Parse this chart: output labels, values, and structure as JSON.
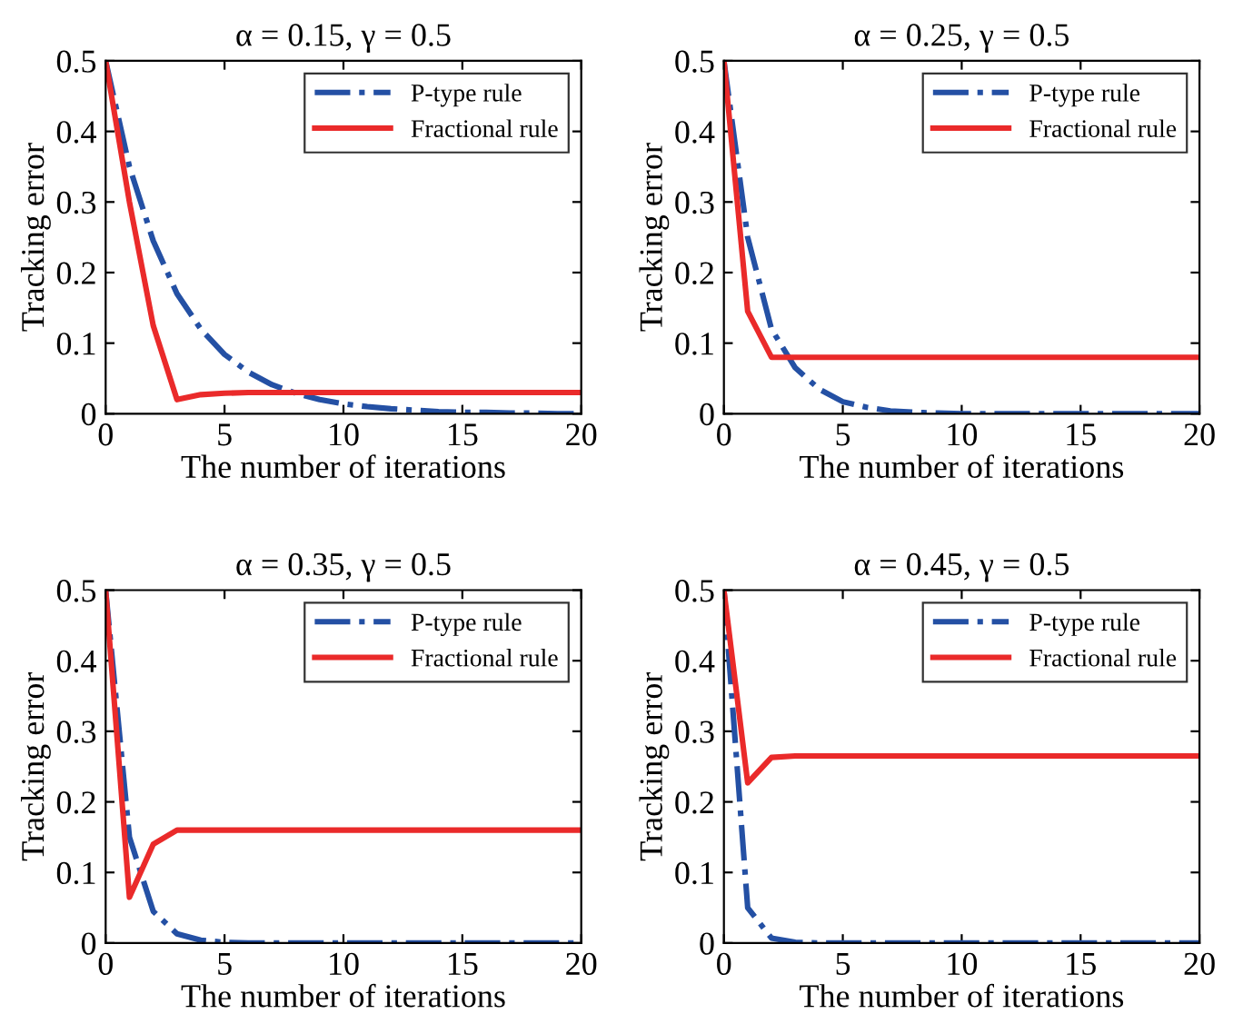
{
  "chart_data": [
    {
      "type": "line",
      "title": "α = 0.15, γ = 0.5",
      "xlabel": "The number of iterations",
      "ylabel": "Tracking error",
      "x": [
        0,
        1,
        2,
        3,
        4,
        5,
        6,
        7,
        8,
        9,
        10,
        11,
        12,
        13,
        14,
        15,
        16,
        17,
        18,
        19,
        20
      ],
      "xlim": [
        0,
        20
      ],
      "ylim": [
        0,
        0.5
      ],
      "xticks": [
        0,
        5,
        10,
        15,
        20
      ],
      "yticks": [
        0,
        0.1,
        0.2,
        0.3,
        0.4,
        0.5
      ],
      "legend": "top right",
      "grid": false,
      "series": [
        {
          "name": "P-type rule",
          "color": "#2450a4",
          "line_style": "dashed",
          "values": [
            0.5,
            0.35,
            0.245,
            0.17,
            0.12,
            0.084,
            0.059,
            0.041,
            0.029,
            0.02,
            0.014,
            0.01,
            0.007,
            0.005,
            0.003,
            0.002,
            0.002,
            0.001,
            0.001,
            0,
            0
          ]
        },
        {
          "name": "Fractional rule",
          "color": "#ea2a2a",
          "line_style": "solid",
          "values": [
            0.5,
            0.3,
            0.125,
            0.02,
            0.027,
            0.029,
            0.03,
            0.03,
            0.03,
            0.03,
            0.03,
            0.03,
            0.03,
            0.03,
            0.03,
            0.03,
            0.03,
            0.03,
            0.03,
            0.03,
            0.03
          ]
        }
      ]
    },
    {
      "type": "line",
      "title": "α = 0.25, γ = 0.5",
      "xlabel": "The number of iterations",
      "ylabel": "Tracking error",
      "x": [
        0,
        1,
        2,
        3,
        4,
        5,
        6,
        7,
        8,
        9,
        10,
        11,
        12,
        13,
        14,
        15,
        16,
        17,
        18,
        19,
        20
      ],
      "xlim": [
        0,
        20
      ],
      "ylim": [
        0,
        0.5
      ],
      "xticks": [
        0,
        5,
        10,
        15,
        20
      ],
      "yticks": [
        0,
        0.1,
        0.2,
        0.3,
        0.4,
        0.5
      ],
      "legend": "top right",
      "grid": false,
      "series": [
        {
          "name": "P-type rule",
          "color": "#2450a4",
          "line_style": "dashed",
          "values": [
            0.5,
            0.25,
            0.12,
            0.065,
            0.035,
            0.017,
            0.009,
            0.004,
            0.002,
            0.001,
            0,
            0,
            0,
            0,
            0,
            0,
            0,
            0,
            0,
            0,
            0
          ]
        },
        {
          "name": "Fractional rule",
          "color": "#ea2a2a",
          "line_style": "solid",
          "values": [
            0.5,
            0.145,
            0.08,
            0.08,
            0.08,
            0.08,
            0.08,
            0.08,
            0.08,
            0.08,
            0.08,
            0.08,
            0.08,
            0.08,
            0.08,
            0.08,
            0.08,
            0.08,
            0.08,
            0.08,
            0.08
          ]
        }
      ]
    },
    {
      "type": "line",
      "title": "α = 0.35, γ = 0.5",
      "xlabel": "The number of iterations",
      "ylabel": "Tracking error",
      "x": [
        0,
        1,
        2,
        3,
        4,
        5,
        6,
        7,
        8,
        9,
        10,
        11,
        12,
        13,
        14,
        15,
        16,
        17,
        18,
        19,
        20
      ],
      "xlim": [
        0,
        20
      ],
      "ylim": [
        0,
        0.5
      ],
      "xticks": [
        0,
        5,
        10,
        15,
        20
      ],
      "yticks": [
        0,
        0.1,
        0.2,
        0.3,
        0.4,
        0.5
      ],
      "legend": "top right",
      "grid": false,
      "series": [
        {
          "name": "P-type rule",
          "color": "#2450a4",
          "line_style": "dashed",
          "values": [
            0.5,
            0.15,
            0.045,
            0.013,
            0.004,
            0.001,
            0,
            0,
            0,
            0,
            0,
            0,
            0,
            0,
            0,
            0,
            0,
            0,
            0,
            0,
            0
          ]
        },
        {
          "name": "Fractional rule",
          "color": "#ea2a2a",
          "line_style": "solid",
          "values": [
            0.5,
            0.065,
            0.14,
            0.16,
            0.16,
            0.16,
            0.16,
            0.16,
            0.16,
            0.16,
            0.16,
            0.16,
            0.16,
            0.16,
            0.16,
            0.16,
            0.16,
            0.16,
            0.16,
            0.16,
            0.16
          ]
        }
      ]
    },
    {
      "type": "line",
      "title": "α = 0.45, γ = 0.5",
      "xlabel": "The number of iterations",
      "ylabel": "Tracking error",
      "x": [
        0,
        1,
        2,
        3,
        4,
        5,
        6,
        7,
        8,
        9,
        10,
        11,
        12,
        13,
        14,
        15,
        16,
        17,
        18,
        19,
        20
      ],
      "xlim": [
        0,
        20
      ],
      "ylim": [
        0,
        0.5
      ],
      "xticks": [
        0,
        5,
        10,
        15,
        20
      ],
      "yticks": [
        0,
        0.1,
        0.2,
        0.3,
        0.4,
        0.5
      ],
      "legend": "top right",
      "grid": false,
      "series": [
        {
          "name": "P-type rule",
          "color": "#2450a4",
          "line_style": "dashed",
          "values": [
            0.5,
            0.05,
            0.007,
            0.001,
            0,
            0,
            0,
            0,
            0,
            0,
            0,
            0,
            0,
            0,
            0,
            0,
            0,
            0,
            0,
            0,
            0
          ]
        },
        {
          "name": "Fractional rule",
          "color": "#ea2a2a",
          "line_style": "solid",
          "values": [
            0.5,
            0.227,
            0.263,
            0.265,
            0.265,
            0.265,
            0.265,
            0.265,
            0.265,
            0.265,
            0.265,
            0.265,
            0.265,
            0.265,
            0.265,
            0.265,
            0.265,
            0.265,
            0.265,
            0.265,
            0.265
          ]
        }
      ]
    }
  ]
}
